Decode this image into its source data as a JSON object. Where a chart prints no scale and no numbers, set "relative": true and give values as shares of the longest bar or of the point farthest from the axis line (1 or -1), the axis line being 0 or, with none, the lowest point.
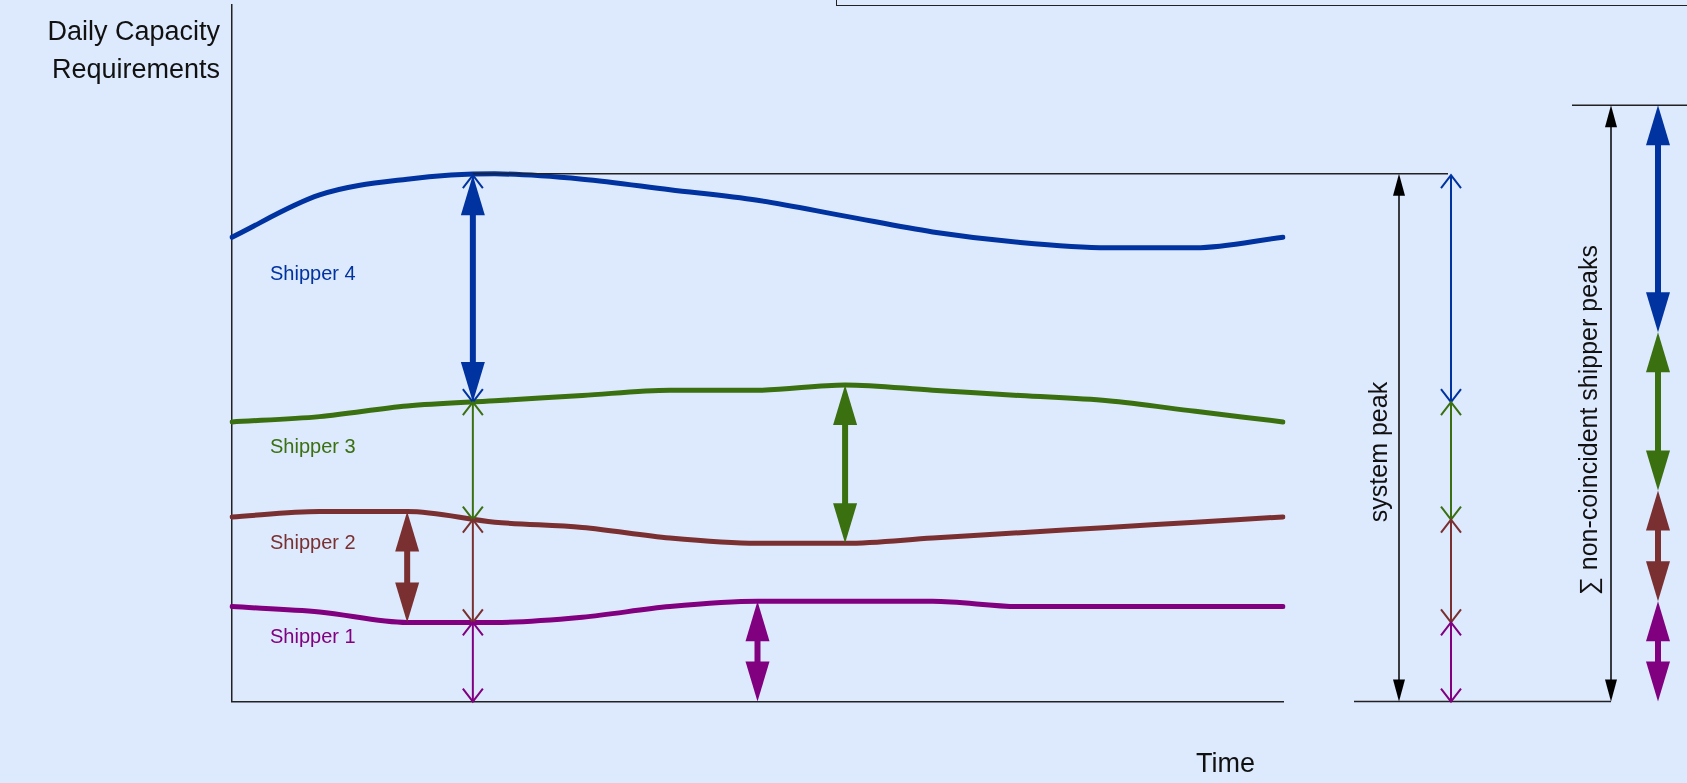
{
  "chart_data": {
    "type": "line",
    "relative": true,
    "ylabel": "Daily Capacity Requirements",
    "xlabel": "Time",
    "marker": "none",
    "line_style": "solid",
    "grid": false,
    "categories": [
      null,
      null,
      null,
      null,
      null,
      null,
      null,
      null,
      null,
      null,
      null,
      null,
      null
    ],
    "series": [
      {
        "name": "Shipper 4",
        "color": "#0033a0",
        "values": [
          0.88,
          0.96,
          0.99,
          1.0,
          0.99,
          0.97,
          0.95,
          0.92,
          0.89,
          0.87,
          0.86,
          0.86,
          0.88
        ]
      },
      {
        "name": "Shipper 3",
        "color": "#3a7010",
        "values": [
          0.53,
          0.54,
          0.56,
          0.57,
          0.58,
          0.59,
          0.59,
          0.6,
          0.59,
          0.58,
          0.57,
          0.55,
          0.53
        ]
      },
      {
        "name": "Shipper 2",
        "color": "#7a3030",
        "values": [
          0.35,
          0.36,
          0.36,
          0.34,
          0.33,
          0.31,
          0.3,
          0.3,
          0.31,
          0.32,
          0.33,
          0.34,
          0.35
        ]
      },
      {
        "name": "Shipper 1",
        "color": "#800080",
        "values": [
          0.18,
          0.17,
          0.15,
          0.15,
          0.16,
          0.18,
          0.19,
          0.19,
          0.19,
          0.18,
          0.18,
          0.18,
          0.18
        ]
      }
    ],
    "annotations": [
      "system peak",
      "∑ non-coincident shipper peaks"
    ]
  }
}
